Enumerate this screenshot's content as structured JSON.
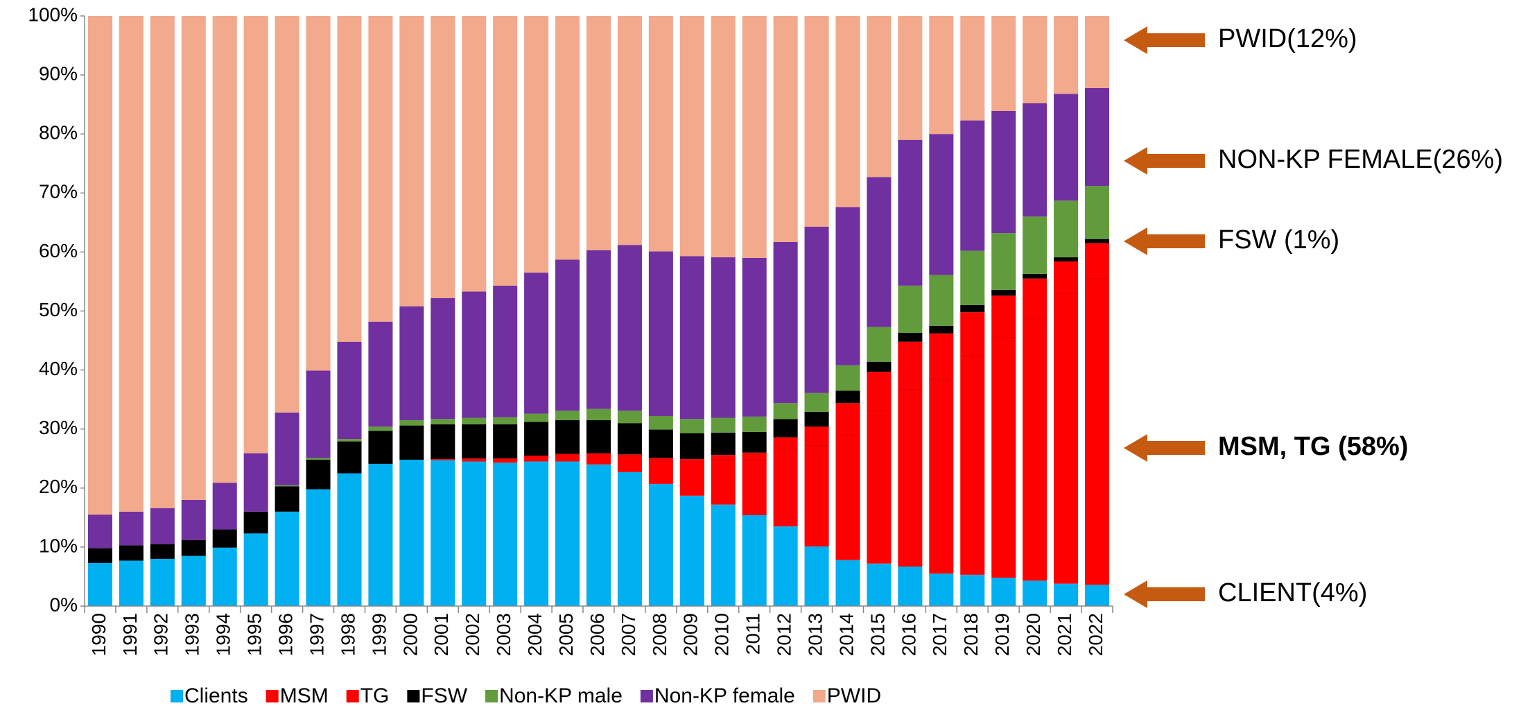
{
  "chart_data": {
    "type": "stacked_bar",
    "categories": [
      "1990",
      "1991",
      "1992",
      "1993",
      "1994",
      "1995",
      "1996",
      "1997",
      "1998",
      "1999",
      "2000",
      "2001",
      "2002",
      "2003",
      "2004",
      "2005",
      "2006",
      "2007",
      "2008",
      "2009",
      "2010",
      "2011",
      "2012",
      "2013",
      "2014",
      "2015",
      "2016",
      "2017",
      "2018",
      "2019",
      "2020",
      "2021",
      "2022"
    ],
    "series": [
      {
        "name": "Clients",
        "color": "#00b0f0",
        "values": [
          7.3,
          7.7,
          8,
          8.5,
          9.9,
          12.3,
          16,
          19.8,
          22.5,
          24.1,
          24.8,
          24.7,
          24.5,
          24.3,
          24.5,
          24.5,
          24,
          22.7,
          20.7,
          18.7,
          17.2,
          15.4,
          13.5,
          10.1,
          7.8,
          7.2,
          6.7,
          5.5,
          5.3,
          4.8,
          4.3,
          3.8,
          3.6
        ]
      },
      {
        "name": "MSM",
        "color": "#ff0000",
        "values": [
          0,
          0,
          0,
          0,
          0,
          0,
          0,
          0,
          0,
          0,
          0,
          0.2,
          0.5,
          0.7,
          0.9,
          1.2,
          1.8,
          2.8,
          4.1,
          5.7,
          7.6,
          9.4,
          13.1,
          17.1,
          21.2,
          26,
          30,
          32.9,
          37,
          40.7,
          44.2,
          49.2,
          51.9
        ]
      },
      {
        "name": "TG",
        "color": "#ff0000",
        "values": [
          0,
          0,
          0,
          0,
          0,
          0,
          0,
          0,
          0,
          0,
          0,
          0,
          0,
          0,
          0.1,
          0.1,
          0.1,
          0.2,
          0.3,
          0.5,
          0.8,
          1.2,
          2,
          3.2,
          5.4,
          6.5,
          8.1,
          7.8,
          7.5,
          7.1,
          7,
          5.4,
          6
        ]
      },
      {
        "name": "FSW",
        "color": "#000000",
        "values": [
          2.5,
          2.6,
          2.5,
          2.7,
          3.1,
          3.7,
          4.3,
          5,
          5.4,
          5.6,
          5.8,
          5.9,
          5.8,
          5.8,
          5.7,
          5.7,
          5.6,
          5.3,
          4.8,
          4.4,
          3.8,
          3.5,
          3.1,
          2.5,
          2.1,
          1.7,
          1.5,
          1.3,
          1.2,
          1,
          0.8,
          0.7,
          0.7
        ]
      },
      {
        "name": "Non-KP male",
        "color": "#629b3c",
        "values": [
          0,
          0,
          0,
          0,
          0,
          0,
          0.2,
          0.3,
          0.4,
          0.7,
          0.9,
          0.9,
          1.1,
          1.2,
          1.4,
          1.6,
          1.9,
          2.1,
          2.3,
          2.4,
          2.5,
          2.6,
          2.7,
          3.2,
          4.3,
          5.9,
          8,
          8.6,
          9.2,
          9.6,
          9.7,
          9.6,
          9
        ]
      },
      {
        "name": "Non-KP female",
        "color": "#7030a0",
        "values": [
          5.7,
          5.7,
          6.1,
          6.8,
          7.9,
          9.9,
          12.3,
          14.8,
          16.5,
          17.8,
          19.3,
          20.5,
          21.4,
          22.3,
          23.9,
          25.6,
          26.9,
          28.1,
          27.9,
          27.6,
          27.2,
          26.9,
          27.3,
          28.2,
          26.8,
          25.4,
          24.7,
          23.9,
          22.1,
          20.7,
          19.2,
          18.1,
          16.6
        ]
      },
      {
        "name": "PWID",
        "color": "#f2a98c",
        "values": [
          84.5,
          84,
          83.4,
          82,
          79.1,
          74.1,
          67.2,
          60.1,
          55.2,
          51.8,
          49.2,
          47.8,
          46.7,
          45.7,
          43.5,
          41.3,
          39.7,
          38.8,
          39.9,
          40.7,
          40.9,
          41,
          38.3,
          35.7,
          32.4,
          27.3,
          21,
          20,
          17.7,
          16.1,
          14.8,
          13.2,
          12.2
        ]
      }
    ],
    "ylim": [
      0,
      100
    ],
    "yticks": [
      {
        "value": 0,
        "label": "0%"
      },
      {
        "value": 10,
        "label": "10%"
      },
      {
        "value": 20,
        "label": "20%"
      },
      {
        "value": 30,
        "label": "30%"
      },
      {
        "value": 40,
        "label": "40%"
      },
      {
        "value": 50,
        "label": "50%"
      },
      {
        "value": 60,
        "label": "60%"
      },
      {
        "value": 70,
        "label": "70%"
      },
      {
        "value": 80,
        "label": "80%"
      },
      {
        "value": 90,
        "label": "90%"
      },
      {
        "value": 100,
        "label": "100%"
      }
    ],
    "legend": "bottom",
    "annotations": [
      {
        "text": "PWID(12%)",
        "color": "#000000"
      },
      {
        "text": "NON-KP FEMALE(26%)",
        "color": "#000000"
      },
      {
        "text": "FSW (1%)",
        "color": "#000000"
      },
      {
        "text": "MSM, TG (58%)",
        "color": "#ff0000",
        "bold": true
      },
      {
        "text": "CLIENT(4%)",
        "color": "#000000"
      }
    ],
    "arrow_color": "#c55a11"
  }
}
